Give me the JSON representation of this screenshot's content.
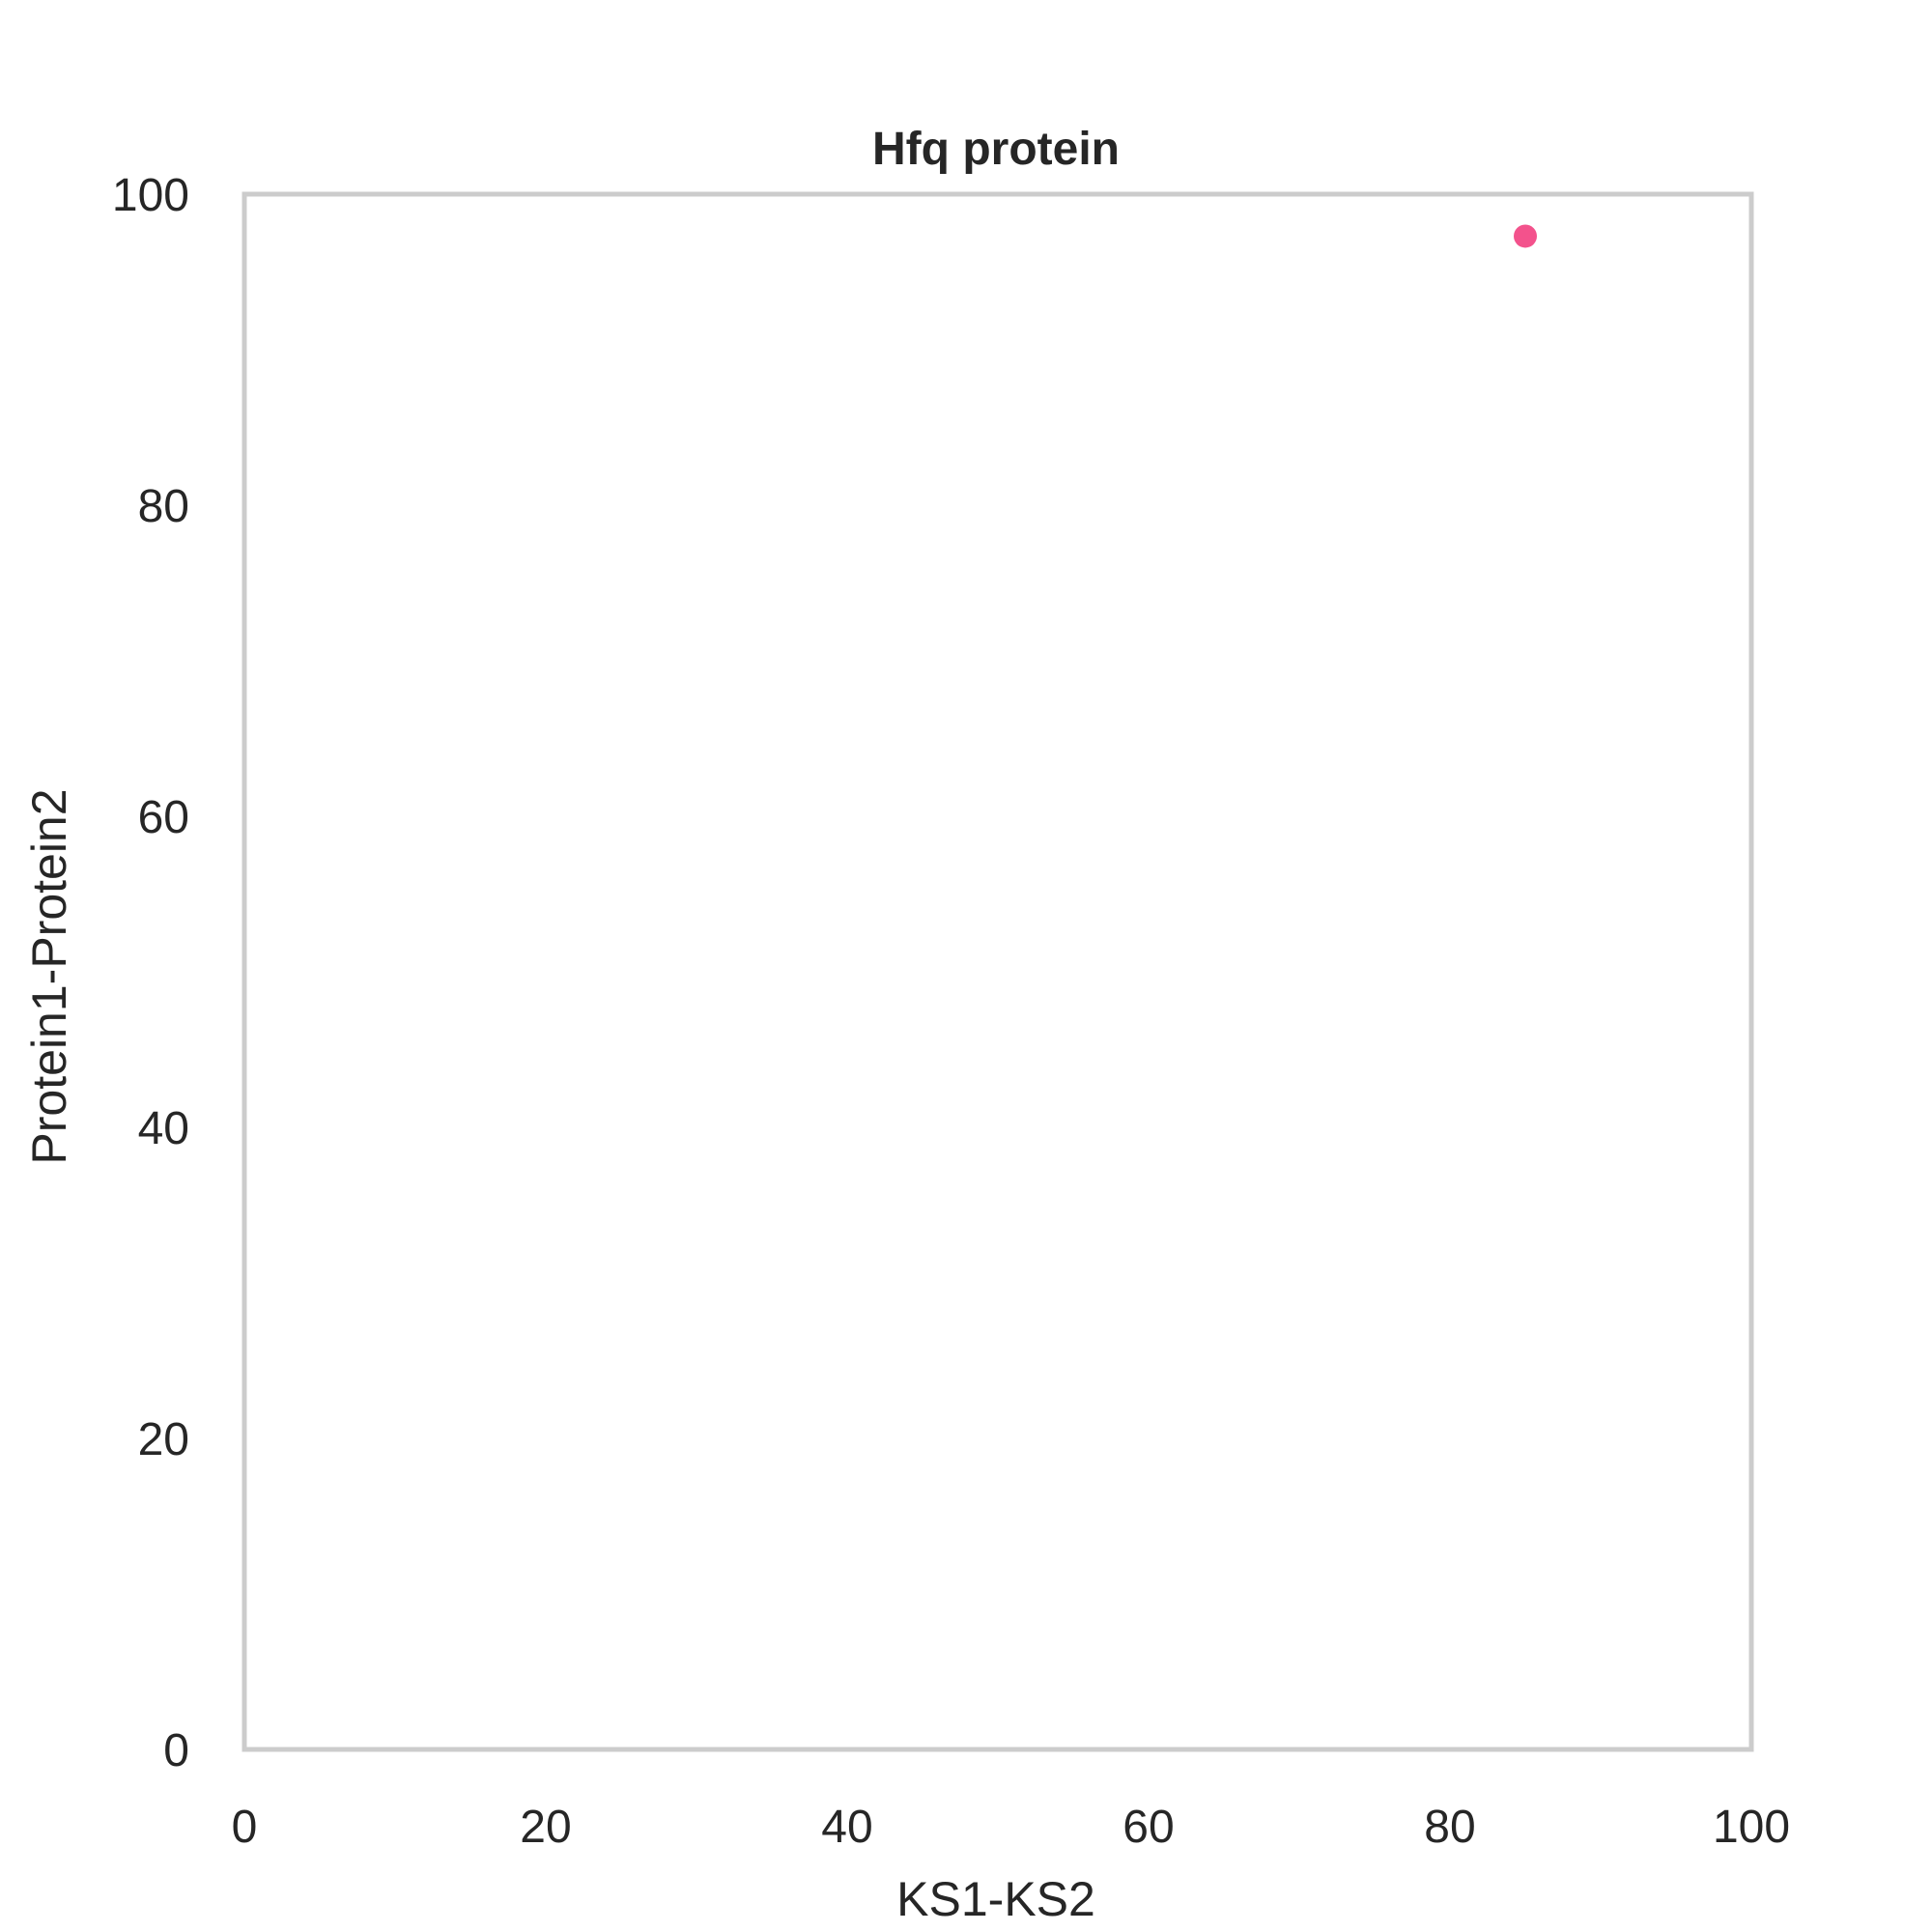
{
  "chart_data": {
    "type": "scatter",
    "title": "Hfq protein",
    "xlabel": "KS1-KS2",
    "ylabel": "Protein1-Protein2",
    "xlim": [
      0,
      100
    ],
    "ylim": [
      0,
      100
    ],
    "xticks": [
      "0",
      "20",
      "40",
      "60",
      "80",
      "100"
    ],
    "yticks": [
      "0",
      "20",
      "40",
      "60",
      "80",
      "100"
    ],
    "grid": false,
    "series": [
      {
        "color": "#f23f80",
        "points": [
          {
            "x": 85,
            "y": 97.3
          }
        ]
      }
    ],
    "frame_color": "#cccccc"
  }
}
